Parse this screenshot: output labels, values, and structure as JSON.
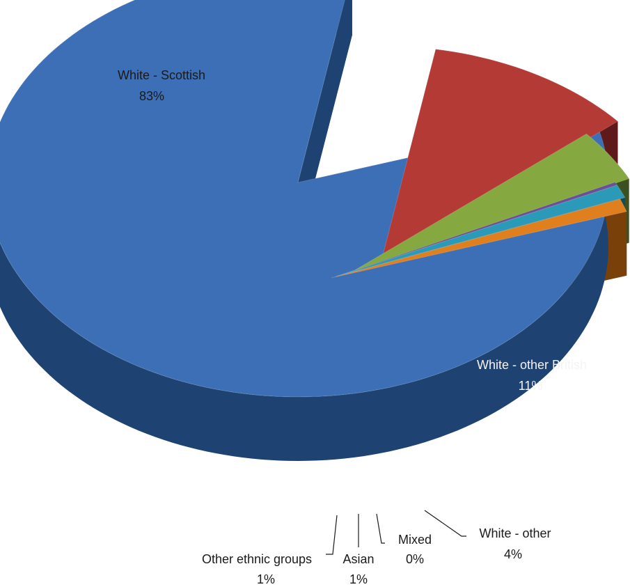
{
  "chart_data": {
    "type": "pie",
    "style": "3d-exploded",
    "categories": [
      "White - Scottish",
      "White - other British",
      "White - other",
      "Mixed",
      "Asian",
      "Other ethnic groups"
    ],
    "values": [
      83,
      11,
      4,
      0,
      1,
      1
    ],
    "labels": [
      "83%",
      "11%",
      "4%",
      "0%",
      "1%",
      "1%"
    ],
    "colors": [
      "#3c6fb6",
      "#b43a36",
      "#86a840",
      "#6a4f94",
      "#2a9ab8",
      "#e07f1e"
    ],
    "side_colors": [
      "#1e4373",
      "#5e1a1a",
      "#3c5020",
      "#2e2146",
      "#134a5a",
      "#7a4009"
    ],
    "legend": "none",
    "title": ""
  }
}
